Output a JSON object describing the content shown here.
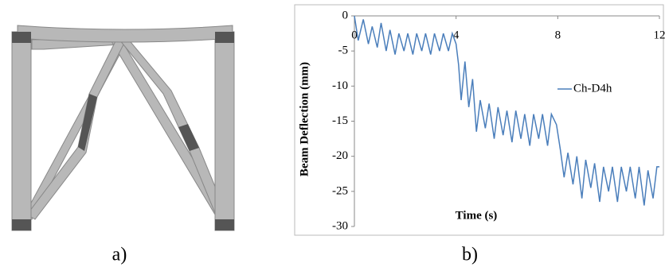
{
  "figure": {
    "label_a": "a)",
    "label_b": "b)"
  },
  "chart_data": {
    "type": "line",
    "y_label": "Beam Deflection (mm)",
    "x_label": "Time  (s)",
    "xlim": [
      0,
      12
    ],
    "xticks": [
      0,
      4,
      8,
      12
    ],
    "ylim": [
      -30,
      0
    ],
    "yticks": [
      -30,
      -25,
      -20,
      -15,
      -10,
      -5,
      0
    ],
    "legend": "right",
    "series": [
      {
        "name": "Ch-D4h",
        "color": "#4a7ebb",
        "x": [
          0,
          0.15,
          0.35,
          0.55,
          0.7,
          0.9,
          1.05,
          1.25,
          1.4,
          1.6,
          1.75,
          1.95,
          2.1,
          2.3,
          2.45,
          2.65,
          2.8,
          3.0,
          3.15,
          3.35,
          3.5,
          3.7,
          3.85,
          4.0,
          4.1,
          4.2,
          4.35,
          4.5,
          4.65,
          4.8,
          4.95,
          5.15,
          5.3,
          5.5,
          5.65,
          5.85,
          6.0,
          6.2,
          6.35,
          6.55,
          6.7,
          6.9,
          7.05,
          7.25,
          7.4,
          7.6,
          7.75,
          7.95,
          8.1,
          8.25,
          8.4,
          8.6,
          8.75,
          8.95,
          9.1,
          9.3,
          9.45,
          9.65,
          9.8,
          10.0,
          10.15,
          10.35,
          10.5,
          10.7,
          10.85,
          11.05,
          11.2,
          11.4,
          11.55,
          11.75,
          11.9,
          12.0
        ],
        "values": [
          0,
          -3.5,
          -0.5,
          -4,
          -1.5,
          -4.5,
          -1,
          -5,
          -2,
          -5.5,
          -2.5,
          -5,
          -2.5,
          -5.5,
          -2.5,
          -5,
          -2.5,
          -5.5,
          -2.5,
          -5,
          -2.5,
          -5,
          -2.5,
          -4,
          -7,
          -12,
          -6.5,
          -13,
          -9,
          -16.5,
          -12,
          -16,
          -12.5,
          -17.5,
          -13,
          -17,
          -13.5,
          -18,
          -13.5,
          -17.5,
          -14,
          -18.5,
          -14,
          -17.5,
          -14,
          -18.5,
          -14,
          -15.5,
          -19,
          -23,
          -19.5,
          -24,
          -20,
          -26,
          -20.5,
          -24.5,
          -21,
          -26.5,
          -21.5,
          -25,
          -21.5,
          -26.5,
          -21.5,
          -25,
          -21.5,
          -26,
          -21.5,
          -27,
          -22,
          -26,
          -21.5,
          -21.5
        ]
      }
    ]
  }
}
